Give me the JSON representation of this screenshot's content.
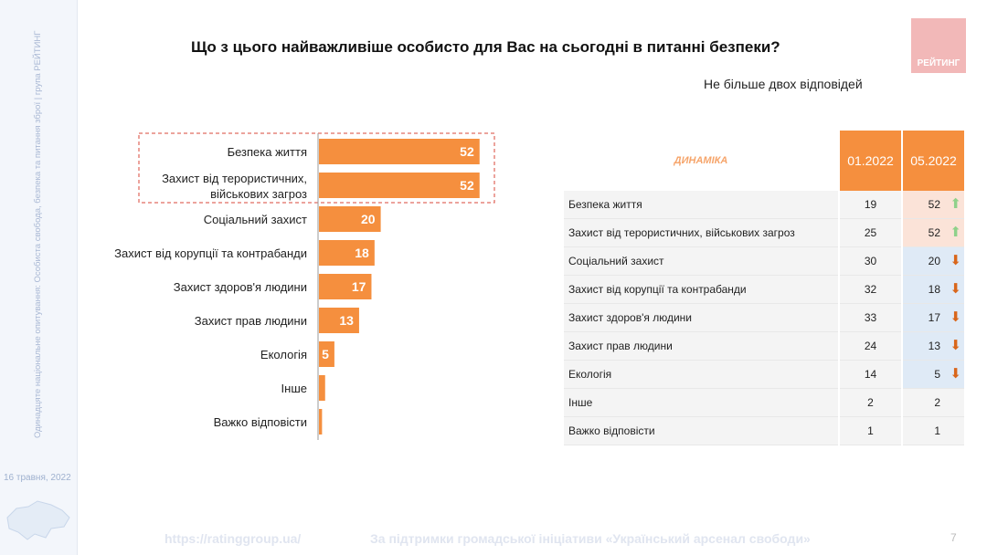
{
  "sidebar": {
    "vertical_text": "Одинадцяте національне опитування: Особиста свобода, безпека та питання зброї | група РЕЙТИНГ",
    "date": "16 травня, 2022"
  },
  "header": {
    "title": "Що з цього найважливіше особисто для Вас на сьогодні в питанні безпеки?",
    "subtitle": "Не більше двох відповідей",
    "logo": "РЕЙТИНГ"
  },
  "chart_data": {
    "type": "bar",
    "orientation": "horizontal",
    "categories": [
      "Безпека життя",
      "Захист від терористичних, військових загроз",
      "Соціальний захист",
      "Захист від корупції та контрабанди",
      "Захист здоров'я людини",
      "Захист прав людини",
      "Екологія",
      "Інше",
      "Важко відповісти"
    ],
    "values": [
      52,
      52,
      20,
      18,
      17,
      13,
      5,
      2,
      1
    ],
    "data_labels": [
      "52",
      "52",
      "20",
      "18",
      "17",
      "13",
      "5",
      "",
      ""
    ],
    "color": "#f58f3e",
    "highlighted": [
      0,
      1
    ]
  },
  "table": {
    "header": "ДИНАМІКА",
    "columns": [
      "01.2022",
      "05.2022"
    ],
    "rows": [
      {
        "label": "Безпека життя",
        "v1": "19",
        "v2": "52",
        "trend": "up"
      },
      {
        "label": "Захист від терористичних, військових загроз",
        "v1": "25",
        "v2": "52",
        "trend": "up"
      },
      {
        "label": "Соціальний захист",
        "v1": "30",
        "v2": "20",
        "trend": "down"
      },
      {
        "label": "Захист від корупції та контрабанди",
        "v1": "32",
        "v2": "18",
        "trend": "down"
      },
      {
        "label": "Захист здоров'я людини",
        "v1": "33",
        "v2": "17",
        "trend": "down"
      },
      {
        "label": "Захист прав людини",
        "v1": "24",
        "v2": "13",
        "trend": "down"
      },
      {
        "label": "Екологія",
        "v1": "14",
        "v2": "5",
        "trend": "down"
      },
      {
        "label": "Інше",
        "v1": "2",
        "v2": "2",
        "trend": "none"
      },
      {
        "label": "Важко відповісти",
        "v1": "1",
        "v2": "1",
        "trend": "none"
      }
    ]
  },
  "colors": {
    "up": "#8fd18a",
    "down": "#d9661b"
  },
  "footer": {
    "url": "https://ratinggroup.ua/",
    "support": "За підтримки  громадської ініціативи «Український арсенал свободи»",
    "page": "7"
  }
}
